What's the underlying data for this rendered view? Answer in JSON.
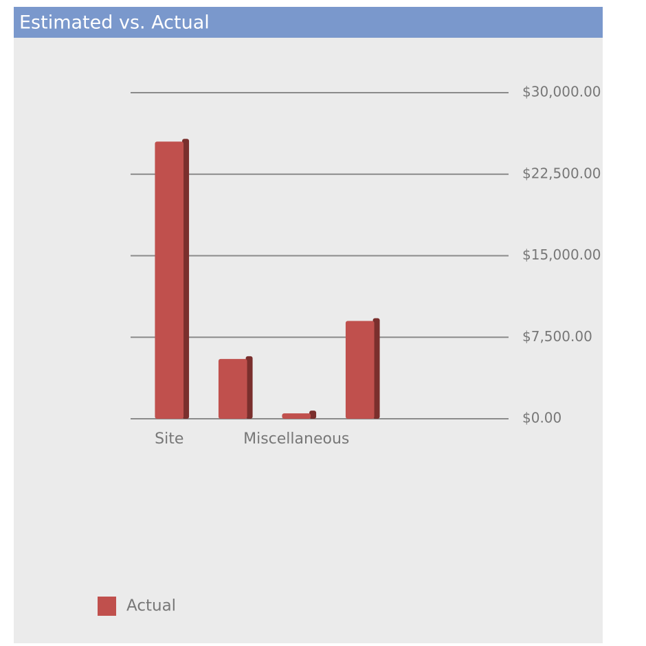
{
  "chart_data": {
    "type": "bar",
    "title": "Estimated vs. Actual",
    "categories": [
      "Site",
      null,
      "Miscellaneous",
      null
    ],
    "series": [
      {
        "name": "Actual",
        "color": "#c0504d",
        "values": [
          25500,
          5500,
          500,
          9000
        ]
      }
    ],
    "ylim": [
      0,
      30000
    ],
    "yticks": [
      {
        "value": 0,
        "label": "$0.00"
      },
      {
        "value": 7500,
        "label": "$7,500.00"
      },
      {
        "value": 15000,
        "label": "$15,000.00"
      },
      {
        "value": 22500,
        "label": "$22,500.00"
      },
      {
        "value": 30000,
        "label": "$30,000.00"
      }
    ],
    "grid": true,
    "legend": "bottom-left"
  }
}
